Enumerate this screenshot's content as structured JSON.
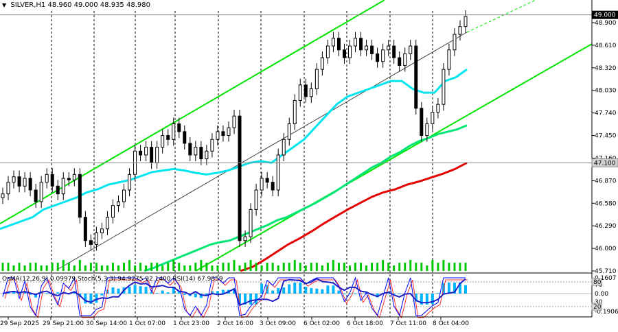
{
  "header": {
    "symbol": "SILVER,H1",
    "ohlc": "48.960 49.000 48.935 48.980"
  },
  "indicators_header": {
    "osma": "OsMA(12,26,9) 0.09979",
    "stoch": "Stoch(5,3,3) 94.9275 92.1400",
    "rsi": "RSI(14) 67.9859"
  },
  "colors": {
    "background": "#ffffff",
    "candles": "#000000",
    "channel": "#00e600",
    "ema_fast": "#00e5ee",
    "ema_mid": "#00e676",
    "ema_slow": "#e60000",
    "volume": "#00c800",
    "osma_hist": "#00b4ff",
    "stoch_main": "#0000ff",
    "stoch_signal": "#ff3030",
    "rsi": "#1e1ec8",
    "price_tag": "#000000",
    "level_tag": "#d0d0d0"
  },
  "chart_data": [
    {
      "type": "line",
      "name": "price",
      "ylim": [
        45.71,
        49.05
      ],
      "y_ticks": [
        "48.900",
        "48.610",
        "48.320",
        "48.030",
        "47.740",
        "47.450",
        "47.160",
        "46.870",
        "46.580",
        "46.290",
        "46.000",
        "45.710"
      ],
      "x_ticks": [
        "29 Sep 2025",
        "29 Sep 21:00",
        "30 Sep 14:00",
        "1 Oct 07:00",
        "1 Oct 23:00",
        "2 Oct 16:00",
        "3 Oct 09:00",
        "6 Oct 02:00",
        "6 Oct 18:00",
        "7 Oct 11:00",
        "8 Oct 04:00"
      ],
      "current_price": "49.000",
      "level_price": "47.100",
      "close": [
        46.7,
        46.85,
        46.92,
        46.8,
        46.9,
        46.75,
        46.6,
        46.85,
        46.95,
        46.8,
        46.7,
        46.9,
        46.88,
        46.95,
        46.4,
        46.1,
        46.05,
        46.2,
        46.25,
        46.4,
        46.55,
        46.6,
        46.75,
        46.95,
        47.25,
        47.2,
        47.3,
        47.1,
        47.3,
        47.45,
        47.4,
        47.6,
        47.5,
        47.35,
        47.2,
        47.3,
        47.15,
        47.25,
        47.4,
        47.5,
        47.45,
        47.55,
        47.7,
        46.1,
        46.15,
        46.5,
        46.75,
        46.9,
        46.85,
        46.75,
        47.2,
        47.4,
        47.6,
        47.9,
        48.1,
        47.95,
        48.05,
        48.3,
        48.45,
        48.6,
        48.7,
        48.55,
        48.45,
        48.6,
        48.7,
        48.55,
        48.6,
        48.5,
        48.4,
        48.55,
        48.6,
        48.45,
        48.35,
        48.5,
        48.6,
        47.8,
        47.45,
        47.6,
        47.75,
        47.85,
        48.3,
        48.55,
        48.75,
        48.85,
        48.98
      ],
      "series": [
        {
          "values": [
            46.25,
            46.3,
            46.35,
            46.4,
            46.5,
            46.55,
            46.6,
            46.65,
            46.72,
            46.76,
            46.82,
            46.85,
            46.88,
            46.93,
            46.98,
            47.0,
            47.02,
            47.0,
            46.97,
            46.95,
            46.97,
            47.0,
            47.05,
            47.1,
            47.12,
            47.1,
            47.2,
            47.3,
            47.4,
            47.55,
            47.7,
            47.85,
            47.95,
            48.0,
            48.05,
            48.1,
            48.15,
            48.15,
            48.05,
            48.0,
            48.0,
            48.15,
            48.2,
            48.3
          ]
        },
        {
          "values": [
            45.71,
            45.75,
            45.8,
            45.85,
            45.9,
            45.95,
            46.0,
            46.05,
            46.08,
            46.1,
            46.15,
            46.2,
            46.25,
            46.3,
            46.36,
            46.4,
            46.46,
            46.52,
            46.58,
            46.65,
            46.72,
            46.8,
            46.88,
            46.96,
            47.04,
            47.1,
            47.18,
            47.24,
            47.32,
            47.38,
            47.42,
            47.47,
            47.5,
            47.53,
            47.58
          ]
        },
        {
          "values": [
            45.71,
            45.76,
            45.85,
            45.95,
            46.05,
            46.13,
            46.22,
            46.32,
            46.41,
            46.5,
            46.58,
            46.66,
            46.72,
            46.76,
            46.82,
            46.86,
            46.91,
            46.96,
            47.02,
            47.1
          ]
        }
      ],
      "volume": [
        3,
        3,
        2,
        3,
        2,
        3,
        3,
        2,
        2,
        3,
        3,
        4,
        3,
        2,
        4,
        2,
        3,
        3,
        2,
        2,
        3,
        2,
        3,
        4,
        2,
        3,
        2,
        3,
        3,
        2,
        3,
        4,
        3,
        2,
        2,
        3,
        4,
        3,
        2,
        2,
        3,
        3,
        4,
        2,
        3,
        4,
        3,
        2,
        3,
        3,
        2,
        3,
        3,
        4,
        3,
        2,
        3,
        3,
        2,
        3,
        4,
        3,
        3,
        2,
        3,
        3,
        2,
        3,
        3,
        4,
        3,
        2,
        3,
        3,
        4,
        3,
        3,
        2,
        4,
        3,
        4,
        3,
        3,
        3,
        3
      ]
    },
    {
      "type": "area",
      "name": "oscillators",
      "levels": [
        "80",
        "20"
      ],
      "y_ticks": [
        "0.1607",
        "0.00",
        "-0.1906",
        "70",
        "30"
      ]
    }
  ]
}
